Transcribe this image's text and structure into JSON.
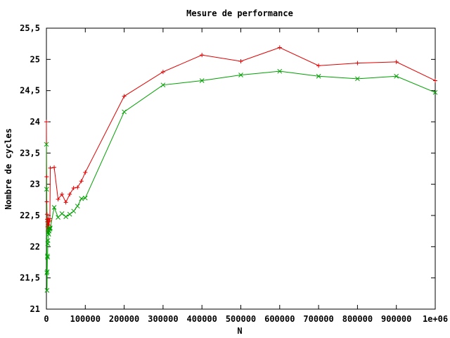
{
  "chart_data": {
    "type": "line",
    "title": "Mesure de performance",
    "xlabel": "N",
    "ylabel": "Nombre de cycles",
    "xlim": [
      0,
      1000000
    ],
    "ylim": [
      21,
      25.5
    ],
    "x_ticks": [
      0,
      100000,
      200000,
      300000,
      400000,
      500000,
      600000,
      700000,
      800000,
      900000,
      1000000
    ],
    "x_tick_labels": [
      "0",
      "100000",
      "200000",
      "300000",
      "400000",
      "500000",
      "600000",
      "700000",
      "800000",
      "900000",
      "1e+06"
    ],
    "y_ticks": [
      21,
      21.5,
      22,
      22.5,
      23,
      23.5,
      24,
      24.5,
      25,
      25.5
    ],
    "y_tick_labels": [
      "21",
      "21,5",
      "22",
      "22,5",
      "23",
      "23,5",
      "24",
      "24,5",
      "25",
      "25,5"
    ],
    "grid": false,
    "series": [
      {
        "color": "#e00000",
        "marker": "plus",
        "points": [
          [
            0,
            24.0
          ],
          [
            500,
            23.12
          ],
          [
            1000,
            22.72
          ],
          [
            1500,
            22.52
          ],
          [
            2000,
            22.44
          ],
          [
            2500,
            22.4
          ],
          [
            3000,
            22.32
          ],
          [
            3500,
            22.25
          ],
          [
            4000,
            22.36
          ],
          [
            4500,
            22.45
          ],
          [
            5000,
            22.28
          ],
          [
            6000,
            22.34
          ],
          [
            7000,
            22.4
          ],
          [
            8000,
            22.42
          ],
          [
            9000,
            22.45
          ],
          [
            10000,
            23.26
          ],
          [
            20000,
            23.27
          ],
          [
            30000,
            22.76
          ],
          [
            40000,
            22.84
          ],
          [
            50000,
            22.71
          ],
          [
            60000,
            22.84
          ],
          [
            70000,
            22.94
          ],
          [
            80000,
            22.95
          ],
          [
            90000,
            23.05
          ],
          [
            100000,
            23.19
          ],
          [
            200000,
            24.41
          ],
          [
            300000,
            24.8
          ],
          [
            400000,
            25.07
          ],
          [
            500000,
            24.97
          ],
          [
            600000,
            25.19
          ],
          [
            700000,
            24.9
          ],
          [
            800000,
            24.94
          ],
          [
            900000,
            24.96
          ],
          [
            1000000,
            24.66
          ]
        ]
      },
      {
        "color": "#00a000",
        "marker": "x",
        "points": [
          [
            0,
            23.64
          ],
          [
            500,
            22.92
          ],
          [
            1000,
            21.58
          ],
          [
            1500,
            21.3
          ],
          [
            2000,
            21.6
          ],
          [
            2500,
            21.85
          ],
          [
            3000,
            21.83
          ],
          [
            3500,
            22.05
          ],
          [
            4000,
            22.1
          ],
          [
            4500,
            22.22
          ],
          [
            5000,
            22.27
          ],
          [
            6000,
            22.2
          ],
          [
            7000,
            22.25
          ],
          [
            8000,
            22.3
          ],
          [
            9000,
            22.28
          ],
          [
            10000,
            22.3
          ],
          [
            20000,
            22.63
          ],
          [
            30000,
            22.47
          ],
          [
            40000,
            22.53
          ],
          [
            50000,
            22.48
          ],
          [
            60000,
            22.52
          ],
          [
            70000,
            22.57
          ],
          [
            80000,
            22.65
          ],
          [
            90000,
            22.77
          ],
          [
            100000,
            22.78
          ],
          [
            200000,
            24.16
          ],
          [
            300000,
            24.59
          ],
          [
            400000,
            24.66
          ],
          [
            500000,
            24.75
          ],
          [
            600000,
            24.81
          ],
          [
            700000,
            24.73
          ],
          [
            800000,
            24.69
          ],
          [
            900000,
            24.73
          ],
          [
            1000000,
            24.47
          ]
        ]
      }
    ]
  }
}
